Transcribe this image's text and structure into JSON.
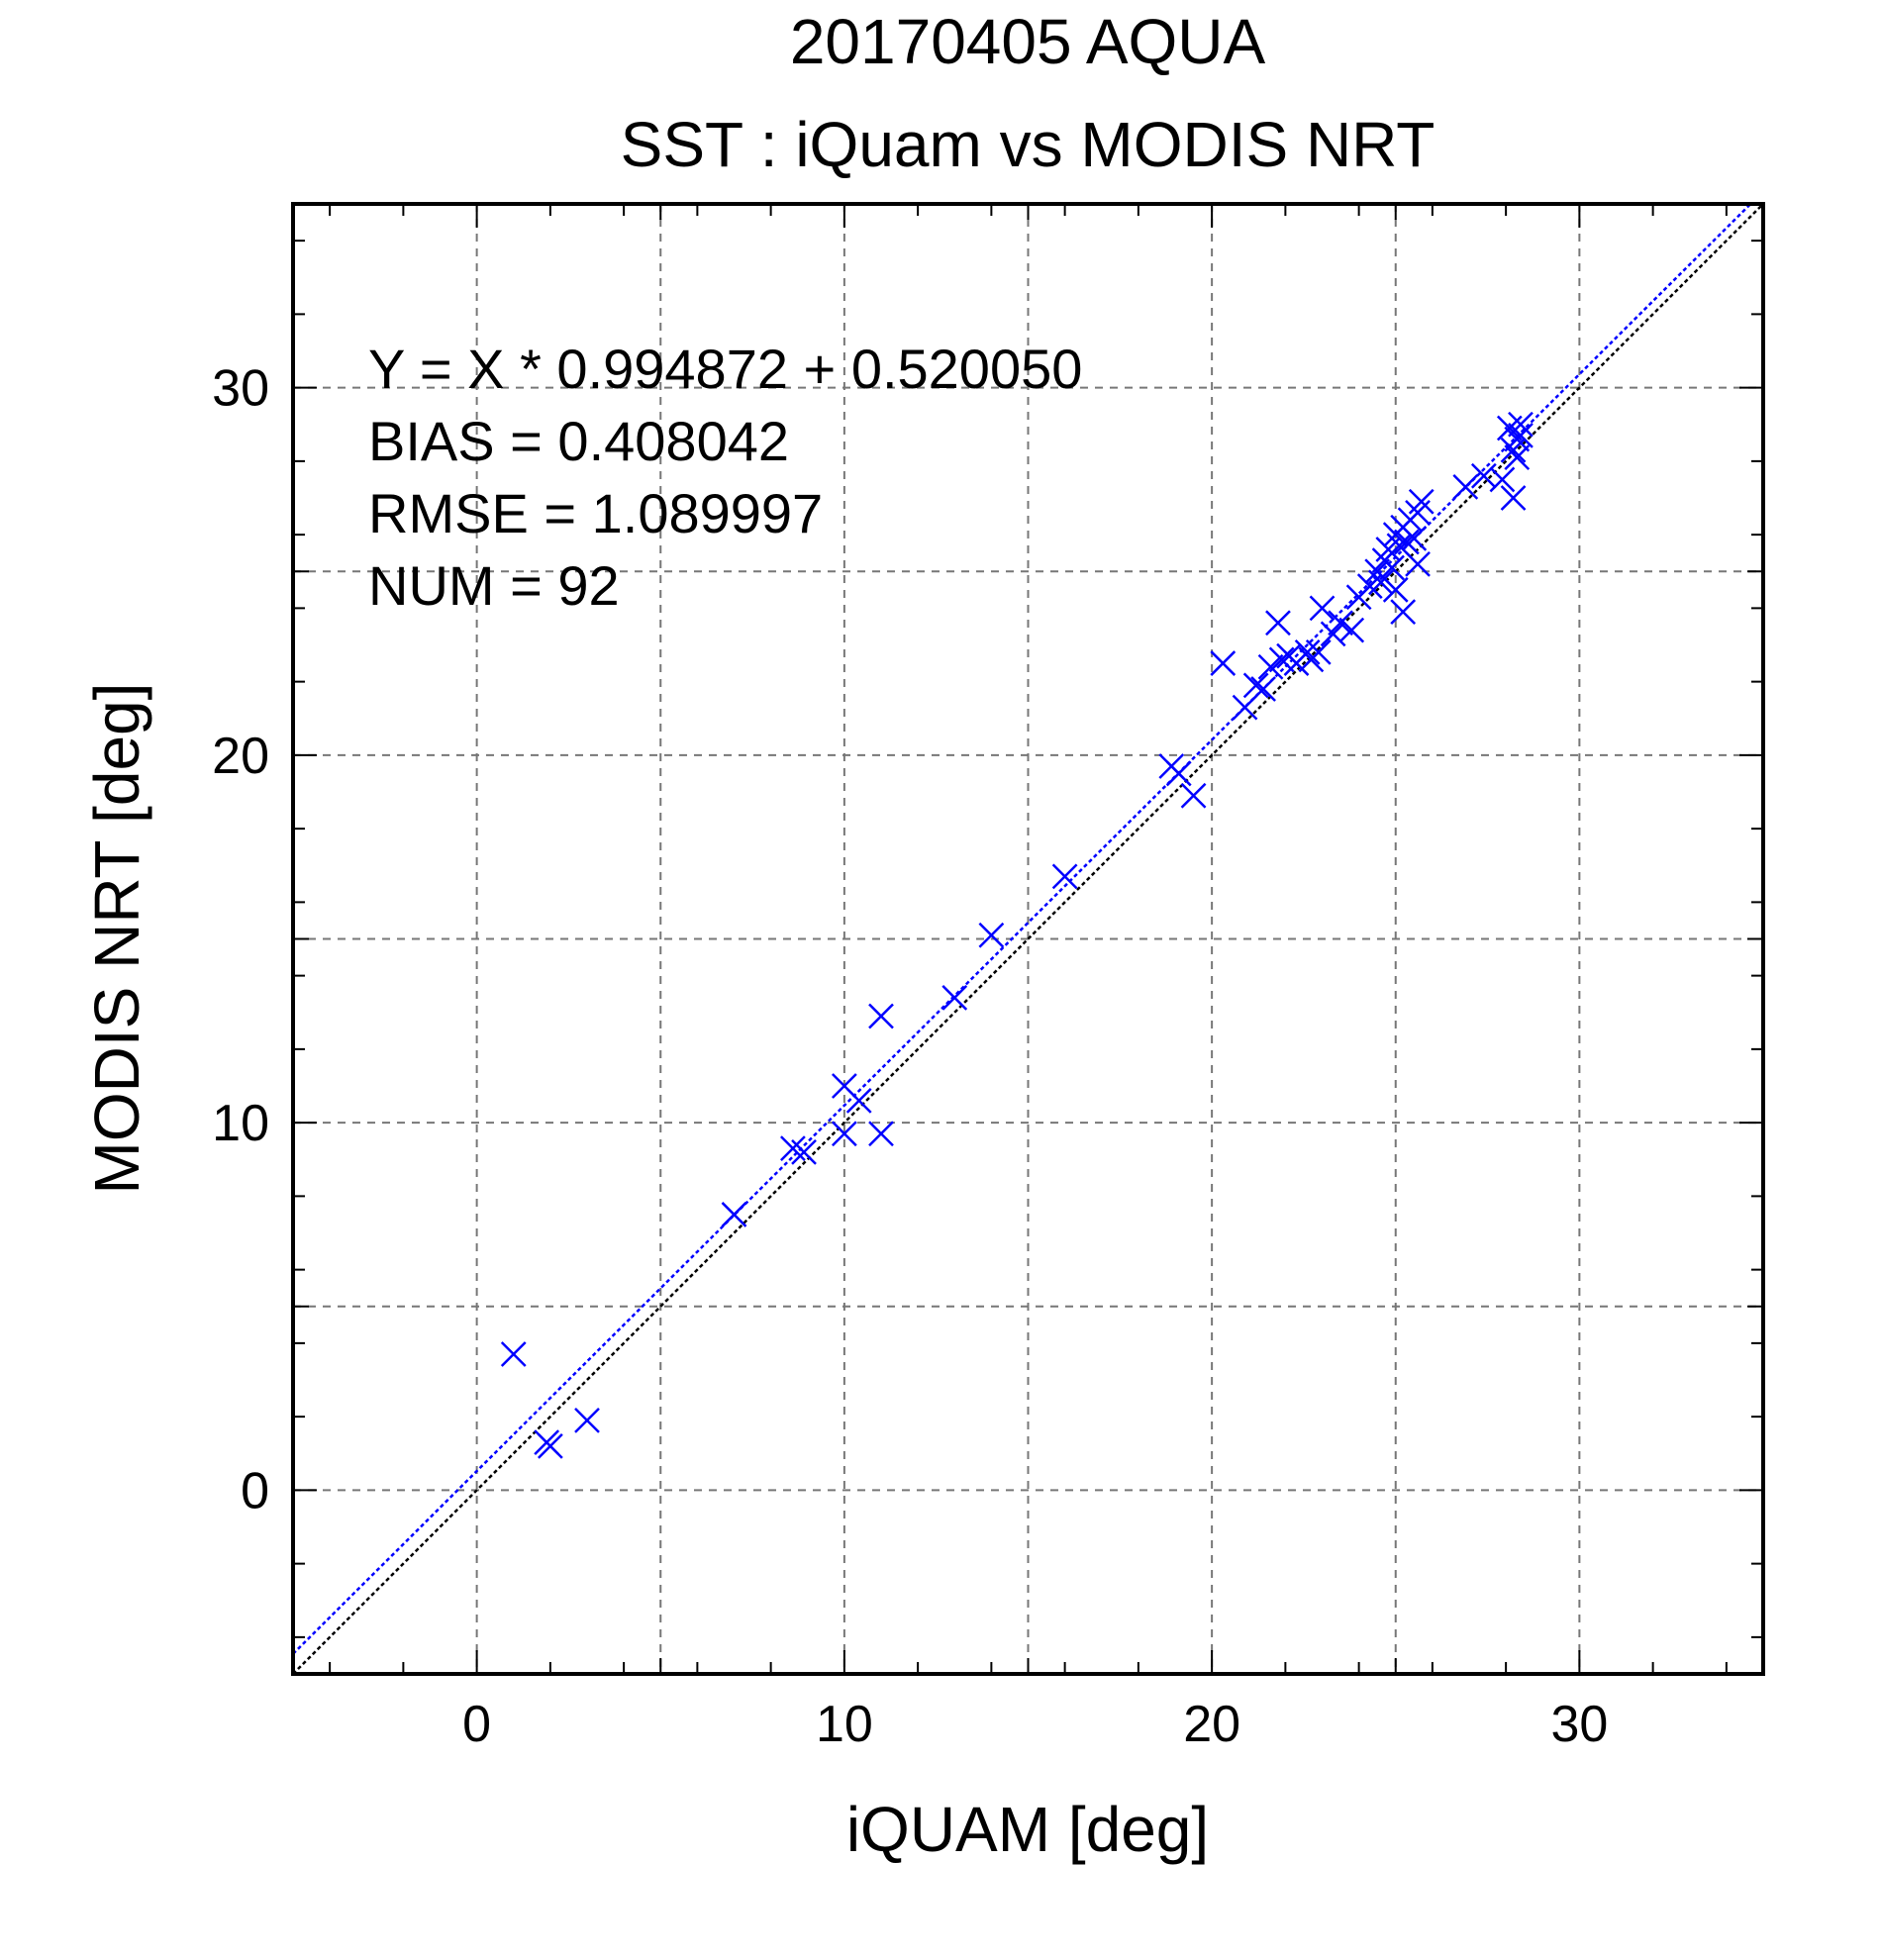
{
  "chart_data": {
    "type": "scatter",
    "title": "20170405 AQUA",
    "subtitle": "SST : iQuam vs MODIS NRT",
    "xlabel": "iQUAM [deg]",
    "ylabel": "MODIS NRT [deg]",
    "xlim": [
      -5,
      35
    ],
    "ylim": [
      -5,
      35
    ],
    "x_ticks": [
      0,
      10,
      20,
      30
    ],
    "y_ticks": [
      0,
      10,
      20,
      30
    ],
    "grid": true,
    "marker": "x",
    "colors": {
      "points": "#0000ff",
      "fit_line": "#0000ff",
      "identity_line": "#000000"
    },
    "stats": [
      "Y = X * 0.994872 + 0.520050",
      "BIAS = 0.408042",
      "RMSE = 1.089997",
      "NUM = 92"
    ],
    "fit": {
      "slope": 0.994872,
      "intercept": 0.52005
    },
    "identity": {
      "slope": 1,
      "intercept": 0
    },
    "points": [
      [
        1.0,
        3.7
      ],
      [
        1.9,
        1.3
      ],
      [
        2.0,
        1.2
      ],
      [
        3.0,
        1.9
      ],
      [
        7.0,
        7.5
      ],
      [
        8.6,
        9.3
      ],
      [
        8.9,
        9.2
      ],
      [
        10.0,
        11.0
      ],
      [
        10.0,
        9.7
      ],
      [
        10.4,
        10.6
      ],
      [
        11.0,
        12.9
      ],
      [
        11.0,
        9.7
      ],
      [
        13.0,
        13.4
      ],
      [
        14.0,
        15.1
      ],
      [
        16.0,
        16.7
      ],
      [
        18.9,
        19.7
      ],
      [
        19.1,
        19.5
      ],
      [
        19.5,
        18.9
      ],
      [
        20.3,
        22.5
      ],
      [
        20.9,
        21.3
      ],
      [
        21.2,
        21.9
      ],
      [
        21.4,
        21.8
      ],
      [
        21.6,
        22.4
      ],
      [
        21.8,
        23.6
      ],
      [
        21.9,
        22.6
      ],
      [
        22.1,
        22.7
      ],
      [
        22.3,
        22.5
      ],
      [
        22.6,
        22.8
      ],
      [
        22.7,
        22.6
      ],
      [
        22.9,
        22.8
      ],
      [
        23.0,
        24.0
      ],
      [
        23.3,
        23.3
      ],
      [
        23.5,
        23.6
      ],
      [
        23.8,
        23.4
      ],
      [
        24.0,
        24.3
      ],
      [
        24.3,
        24.6
      ],
      [
        24.5,
        25.0
      ],
      [
        24.6,
        24.7
      ],
      [
        24.7,
        25.3
      ],
      [
        24.8,
        25.6
      ],
      [
        24.9,
        25.1
      ],
      [
        25.0,
        24.5
      ],
      [
        25.0,
        26.0
      ],
      [
        25.1,
        25.7
      ],
      [
        25.2,
        23.9
      ],
      [
        25.2,
        26.2
      ],
      [
        25.3,
        25.8
      ],
      [
        25.4,
        26.4
      ],
      [
        25.5,
        25.9
      ],
      [
        25.6,
        25.2
      ],
      [
        25.6,
        26.6
      ],
      [
        25.7,
        26.9
      ],
      [
        26.9,
        27.3
      ],
      [
        27.4,
        27.6
      ],
      [
        27.9,
        27.5
      ],
      [
        28.1,
        28.9
      ],
      [
        28.2,
        27.0
      ],
      [
        28.2,
        28.3
      ],
      [
        28.3,
        28.6
      ],
      [
        28.3,
        28.1
      ],
      [
        28.4,
        29.0
      ],
      [
        28.4,
        28.7
      ]
    ]
  }
}
